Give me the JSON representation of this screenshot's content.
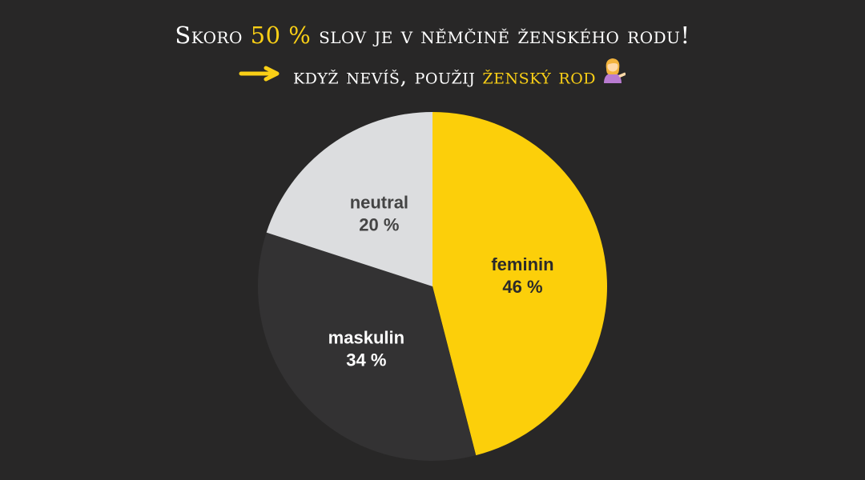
{
  "header": {
    "line1_prefix": "Skoro",
    "line1_highlight": "50 %",
    "line1_suffix": "slov je v němčině ženského rodu!",
    "line2_prefix": "když nevíš, použij",
    "line2_highlight": "ženský rod",
    "arrow_icon": "arrow-right-icon",
    "emoji_icon": "woman-tipping-hand-icon"
  },
  "colors": {
    "background": "#282727",
    "accent": "#f9cf16",
    "feminin": "#fccf0a",
    "maskulin": "#333233",
    "neutral": "#dcdddf"
  },
  "chart_data": {
    "type": "pie",
    "start": "12 o'clock, clockwise",
    "slices": [
      {
        "name": "feminin",
        "value": 46,
        "label": "feminin",
        "value_label": "46 %",
        "color": "#fccf0a",
        "label_color": "#2b2a2a"
      },
      {
        "name": "maskulin",
        "value": 34,
        "label": "maskulin",
        "value_label": "34 %",
        "color": "#333233",
        "label_color": "#ffffff"
      },
      {
        "name": "neutral",
        "value": 20,
        "label": "neutral",
        "value_label": "20 %",
        "color": "#dcdddf",
        "label_color": "#444444"
      }
    ]
  }
}
